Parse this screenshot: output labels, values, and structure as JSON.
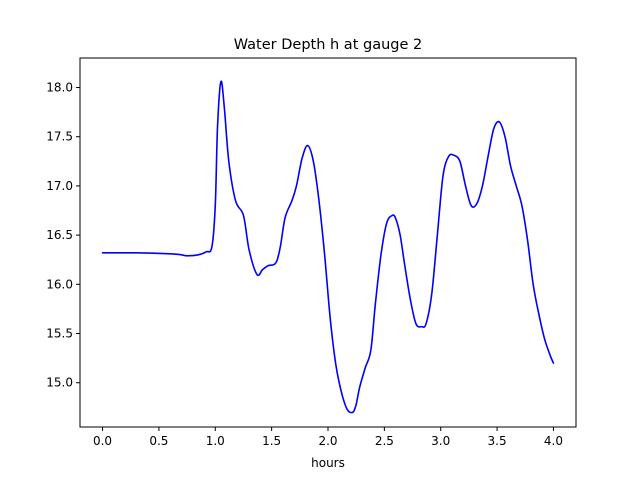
{
  "chart_data": {
    "type": "line",
    "title": "Water Depth h at gauge 2",
    "xlabel": "hours",
    "ylabel": "",
    "xlim": [
      -0.2,
      4.2
    ],
    "ylim": [
      14.55,
      18.3
    ],
    "xticks": [
      0.0,
      0.5,
      1.0,
      1.5,
      2.0,
      2.5,
      3.0,
      3.5,
      4.0
    ],
    "xtick_labels": [
      "0.0",
      "0.5",
      "1.0",
      "1.5",
      "2.0",
      "2.5",
      "3.0",
      "3.5",
      "4.0"
    ],
    "yticks": [
      15.0,
      15.5,
      16.0,
      16.5,
      17.0,
      17.5,
      18.0
    ],
    "ytick_labels": [
      "15.0",
      "15.5",
      "16.0",
      "16.5",
      "17.0",
      "17.5",
      "18.0"
    ],
    "grid": false,
    "series": [
      {
        "color": "#0000ff",
        "x": [
          0.0,
          0.3,
          0.6,
          0.7,
          0.75,
          0.85,
          0.92,
          0.97,
          1.0,
          1.02,
          1.05,
          1.08,
          1.12,
          1.18,
          1.25,
          1.3,
          1.37,
          1.42,
          1.47,
          1.52,
          1.55,
          1.58,
          1.62,
          1.68,
          1.72,
          1.77,
          1.82,
          1.87,
          1.92,
          1.97,
          2.02,
          2.07,
          2.12,
          2.17,
          2.22,
          2.25,
          2.28,
          2.33,
          2.38,
          2.42,
          2.47,
          2.52,
          2.57,
          2.6,
          2.64,
          2.68,
          2.73,
          2.78,
          2.83,
          2.87,
          2.92,
          2.97,
          3.02,
          3.07,
          3.12,
          3.17,
          3.22,
          3.27,
          3.32,
          3.37,
          3.42,
          3.47,
          3.52,
          3.57,
          3.62,
          3.67,
          3.72,
          3.77,
          3.82,
          3.87,
          3.92,
          3.97,
          4.0
        ],
        "y": [
          16.32,
          16.32,
          16.31,
          16.3,
          16.29,
          16.3,
          16.33,
          16.38,
          16.8,
          17.6,
          18.06,
          17.8,
          17.25,
          16.85,
          16.7,
          16.35,
          16.1,
          16.15,
          16.19,
          16.2,
          16.25,
          16.4,
          16.68,
          16.85,
          17.0,
          17.28,
          17.41,
          17.25,
          16.85,
          16.3,
          15.65,
          15.18,
          14.9,
          14.73,
          14.7,
          14.78,
          14.95,
          15.15,
          15.33,
          15.8,
          16.3,
          16.62,
          16.7,
          16.67,
          16.5,
          16.2,
          15.85,
          15.6,
          15.57,
          15.6,
          15.9,
          16.5,
          17.1,
          17.3,
          17.31,
          17.25,
          17.0,
          16.8,
          16.82,
          17.0,
          17.3,
          17.58,
          17.65,
          17.5,
          17.2,
          17.0,
          16.8,
          16.45,
          16.0,
          15.7,
          15.45,
          15.28,
          15.2
        ]
      }
    ]
  }
}
